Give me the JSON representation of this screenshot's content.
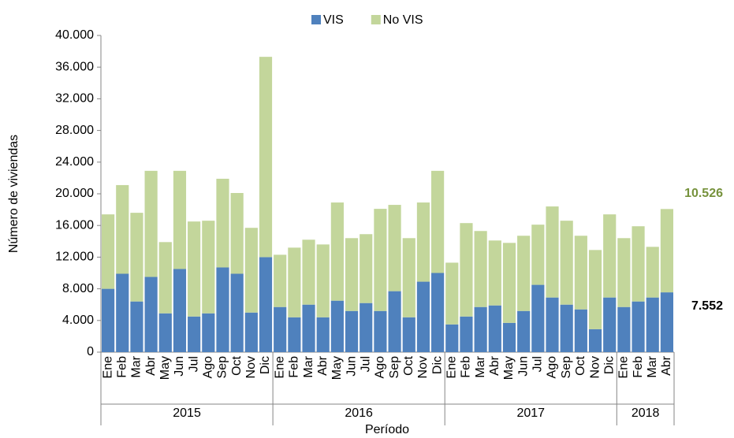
{
  "chart_data": {
    "type": "stacked-bar",
    "x_label": "Período",
    "y_label": "Número de viviendas",
    "groups": [
      {
        "label": "2015",
        "categories": [
          "Ene",
          "Feb",
          "Mar",
          "Abr",
          "May",
          "Jun",
          "Jul",
          "Ago",
          "Sep",
          "Oct",
          "Nov",
          "Dic"
        ]
      },
      {
        "label": "2016",
        "categories": [
          "Ene",
          "Feb",
          "Mar",
          "Abr",
          "May",
          "Jun",
          "Jul",
          "Ago",
          "Sep",
          "Oct",
          "Nov",
          "Dic"
        ]
      },
      {
        "label": "2017",
        "categories": [
          "Ene",
          "Feb",
          "Mar",
          "Abr",
          "May",
          "Jun",
          "Jul",
          "Ago",
          "Sep",
          "Oct",
          "Nov",
          "Dic"
        ]
      },
      {
        "label": "2018",
        "categories": [
          "Ene",
          "Feb",
          "Mar",
          "Abr"
        ]
      }
    ],
    "series": [
      {
        "name": "VIS",
        "color": "#4f81bd",
        "values": [
          8000,
          9900,
          6400,
          9500,
          4900,
          10500,
          4500,
          4900,
          10700,
          9900,
          5000,
          12000,
          5700,
          4400,
          6000,
          4400,
          6500,
          5200,
          6200,
          5200,
          7700,
          4400,
          8900,
          10000,
          3500,
          4500,
          5700,
          5900,
          3700,
          5200,
          8500,
          6900,
          6000,
          5400,
          2900,
          6900,
          5700,
          6400,
          6900,
          7552
        ],
        "value_labels": [
          null,
          null,
          null,
          null,
          null,
          null,
          null,
          null,
          null,
          null,
          null,
          null,
          null,
          null,
          null,
          null,
          null,
          null,
          null,
          null,
          null,
          null,
          null,
          null,
          null,
          null,
          null,
          null,
          null,
          null,
          null,
          null,
          null,
          null,
          null,
          null,
          null,
          null,
          null,
          "7.552"
        ],
        "label_color": "#000000"
      },
      {
        "name": "No VIS",
        "color": "#c3d69b",
        "values": [
          9400,
          11200,
          11200,
          13400,
          9000,
          12400,
          12000,
          11700,
          11200,
          10200,
          10700,
          25300,
          6600,
          8800,
          8200,
          9200,
          12400,
          9200,
          8700,
          12900,
          10900,
          10000,
          10000,
          12900,
          7800,
          11800,
          9600,
          8200,
          10100,
          9500,
          7600,
          11500,
          10600,
          9300,
          10000,
          10500,
          8700,
          9500,
          6400,
          10526
        ],
        "value_labels": [
          null,
          null,
          null,
          null,
          null,
          null,
          null,
          null,
          null,
          null,
          null,
          null,
          null,
          null,
          null,
          null,
          null,
          null,
          null,
          null,
          null,
          null,
          null,
          null,
          null,
          null,
          null,
          null,
          null,
          null,
          null,
          null,
          null,
          null,
          null,
          null,
          null,
          null,
          null,
          "10.526"
        ],
        "label_color": "#76923c"
      }
    ],
    "ylim": [
      0,
      40000
    ],
    "yticks": [
      0,
      {
        "value": 4000,
        "label": "4.000"
      },
      {
        "value": 8000,
        "label": "8.000"
      },
      {
        "value": 12000,
        "label": "12.000"
      },
      {
        "value": 16000,
        "label": "16.000"
      },
      {
        "value": 20000,
        "label": "20.000"
      },
      {
        "value": 24000,
        "label": "24.000"
      },
      {
        "value": 28000,
        "label": "28.000"
      },
      {
        "value": 32000,
        "label": "32.000"
      },
      {
        "value": 36000,
        "label": "36.000"
      },
      {
        "value": 40000,
        "label": "40.000"
      }
    ],
    "legend": "top"
  }
}
